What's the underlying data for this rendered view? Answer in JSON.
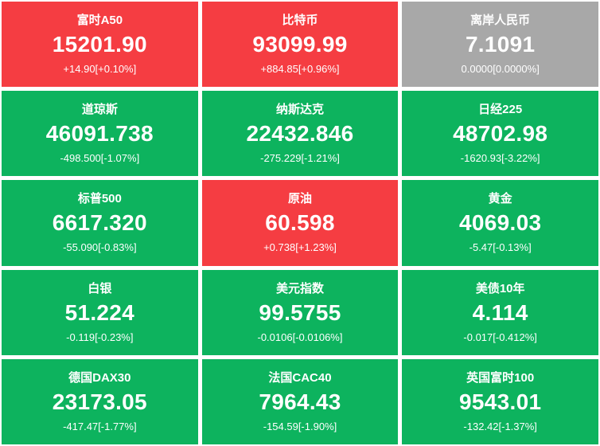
{
  "colors": {
    "up": "#f53d42",
    "down": "#0db35e",
    "flat": "#a8a8a8"
  },
  "tiles": [
    {
      "name": "富时A50",
      "value": "15201.90",
      "change": "+14.90[+0.10%]",
      "trend": "up"
    },
    {
      "name": "比特币",
      "value": "93099.99",
      "change": "+884.85[+0.96%]",
      "trend": "up"
    },
    {
      "name": "离岸人民币",
      "value": "7.1091",
      "change": "0.0000[0.0000%]",
      "trend": "flat"
    },
    {
      "name": "道琼斯",
      "value": "46091.738",
      "change": "-498.500[-1.07%]",
      "trend": "down"
    },
    {
      "name": "纳斯达克",
      "value": "22432.846",
      "change": "-275.229[-1.21%]",
      "trend": "down"
    },
    {
      "name": "日经225",
      "value": "48702.98",
      "change": "-1620.93[-3.22%]",
      "trend": "down"
    },
    {
      "name": "标普500",
      "value": "6617.320",
      "change": "-55.090[-0.83%]",
      "trend": "down"
    },
    {
      "name": "原油",
      "value": "60.598",
      "change": "+0.738[+1.23%]",
      "trend": "up"
    },
    {
      "name": "黄金",
      "value": "4069.03",
      "change": "-5.47[-0.13%]",
      "trend": "down"
    },
    {
      "name": "白银",
      "value": "51.224",
      "change": "-0.119[-0.23%]",
      "trend": "down"
    },
    {
      "name": "美元指数",
      "value": "99.5755",
      "change": "-0.0106[-0.0106%]",
      "trend": "down"
    },
    {
      "name": "美债10年",
      "value": "4.114",
      "change": "-0.017[-0.412%]",
      "trend": "down"
    },
    {
      "name": "德国DAX30",
      "value": "23173.05",
      "change": "-417.47[-1.77%]",
      "trend": "down"
    },
    {
      "name": "法国CAC40",
      "value": "7964.43",
      "change": "-154.59[-1.90%]",
      "trend": "down"
    },
    {
      "name": "英国富时100",
      "value": "9543.01",
      "change": "-132.42[-1.37%]",
      "trend": "down"
    }
  ]
}
